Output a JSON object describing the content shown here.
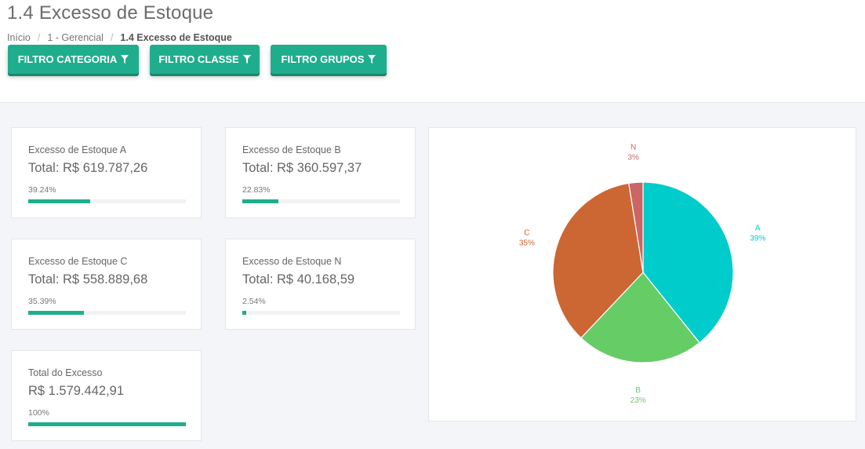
{
  "page": {
    "title": "1.4 Excesso de Estoque"
  },
  "breadcrumb": {
    "items": [
      "Início",
      "1 - Gerencial",
      "1.4 Excesso de Estoque"
    ]
  },
  "filters": {
    "categoria_label": "FILTRO CATEGORIA",
    "classe_label": "FILTRO CLASSE",
    "grupos_label": "FILTRO GRUPOS"
  },
  "cards": [
    {
      "label": "Excesso de Estoque A",
      "total": "Total: R$ 619.787,26",
      "percent_text": "39.24%",
      "percent": 39.24
    },
    {
      "label": "Excesso de Estoque B",
      "total": "Total: R$ 360.597,37",
      "percent_text": "22.83%",
      "percent": 22.83
    },
    {
      "label": "Excesso de Estoque C",
      "total": "Total: R$ 558.889,68",
      "percent_text": "35.39%",
      "percent": 35.39
    },
    {
      "label": "Excesso de Estoque N",
      "total": "Total: R$ 40.168,59",
      "percent_text": "2.54%",
      "percent": 2.54
    },
    {
      "label": "Total do Excesso",
      "total": "R$ 1.579.442,91",
      "percent_text": "100%",
      "percent": 100
    }
  ],
  "colors": {
    "accent": "#1fae8d",
    "A": "#00cccc",
    "B": "#66cc66",
    "C": "#cc6633",
    "N": "#cc6666"
  },
  "chart_data": {
    "type": "pie",
    "slices": [
      {
        "label": "A",
        "value": 39.24,
        "display": "39%",
        "color": "#00cccc"
      },
      {
        "label": "B",
        "value": 22.83,
        "display": "23%",
        "color": "#66cc66"
      },
      {
        "label": "C",
        "value": 35.39,
        "display": "35%",
        "color": "#cc6633"
      },
      {
        "label": "N",
        "value": 2.54,
        "display": "3%",
        "color": "#cc6666"
      }
    ]
  }
}
